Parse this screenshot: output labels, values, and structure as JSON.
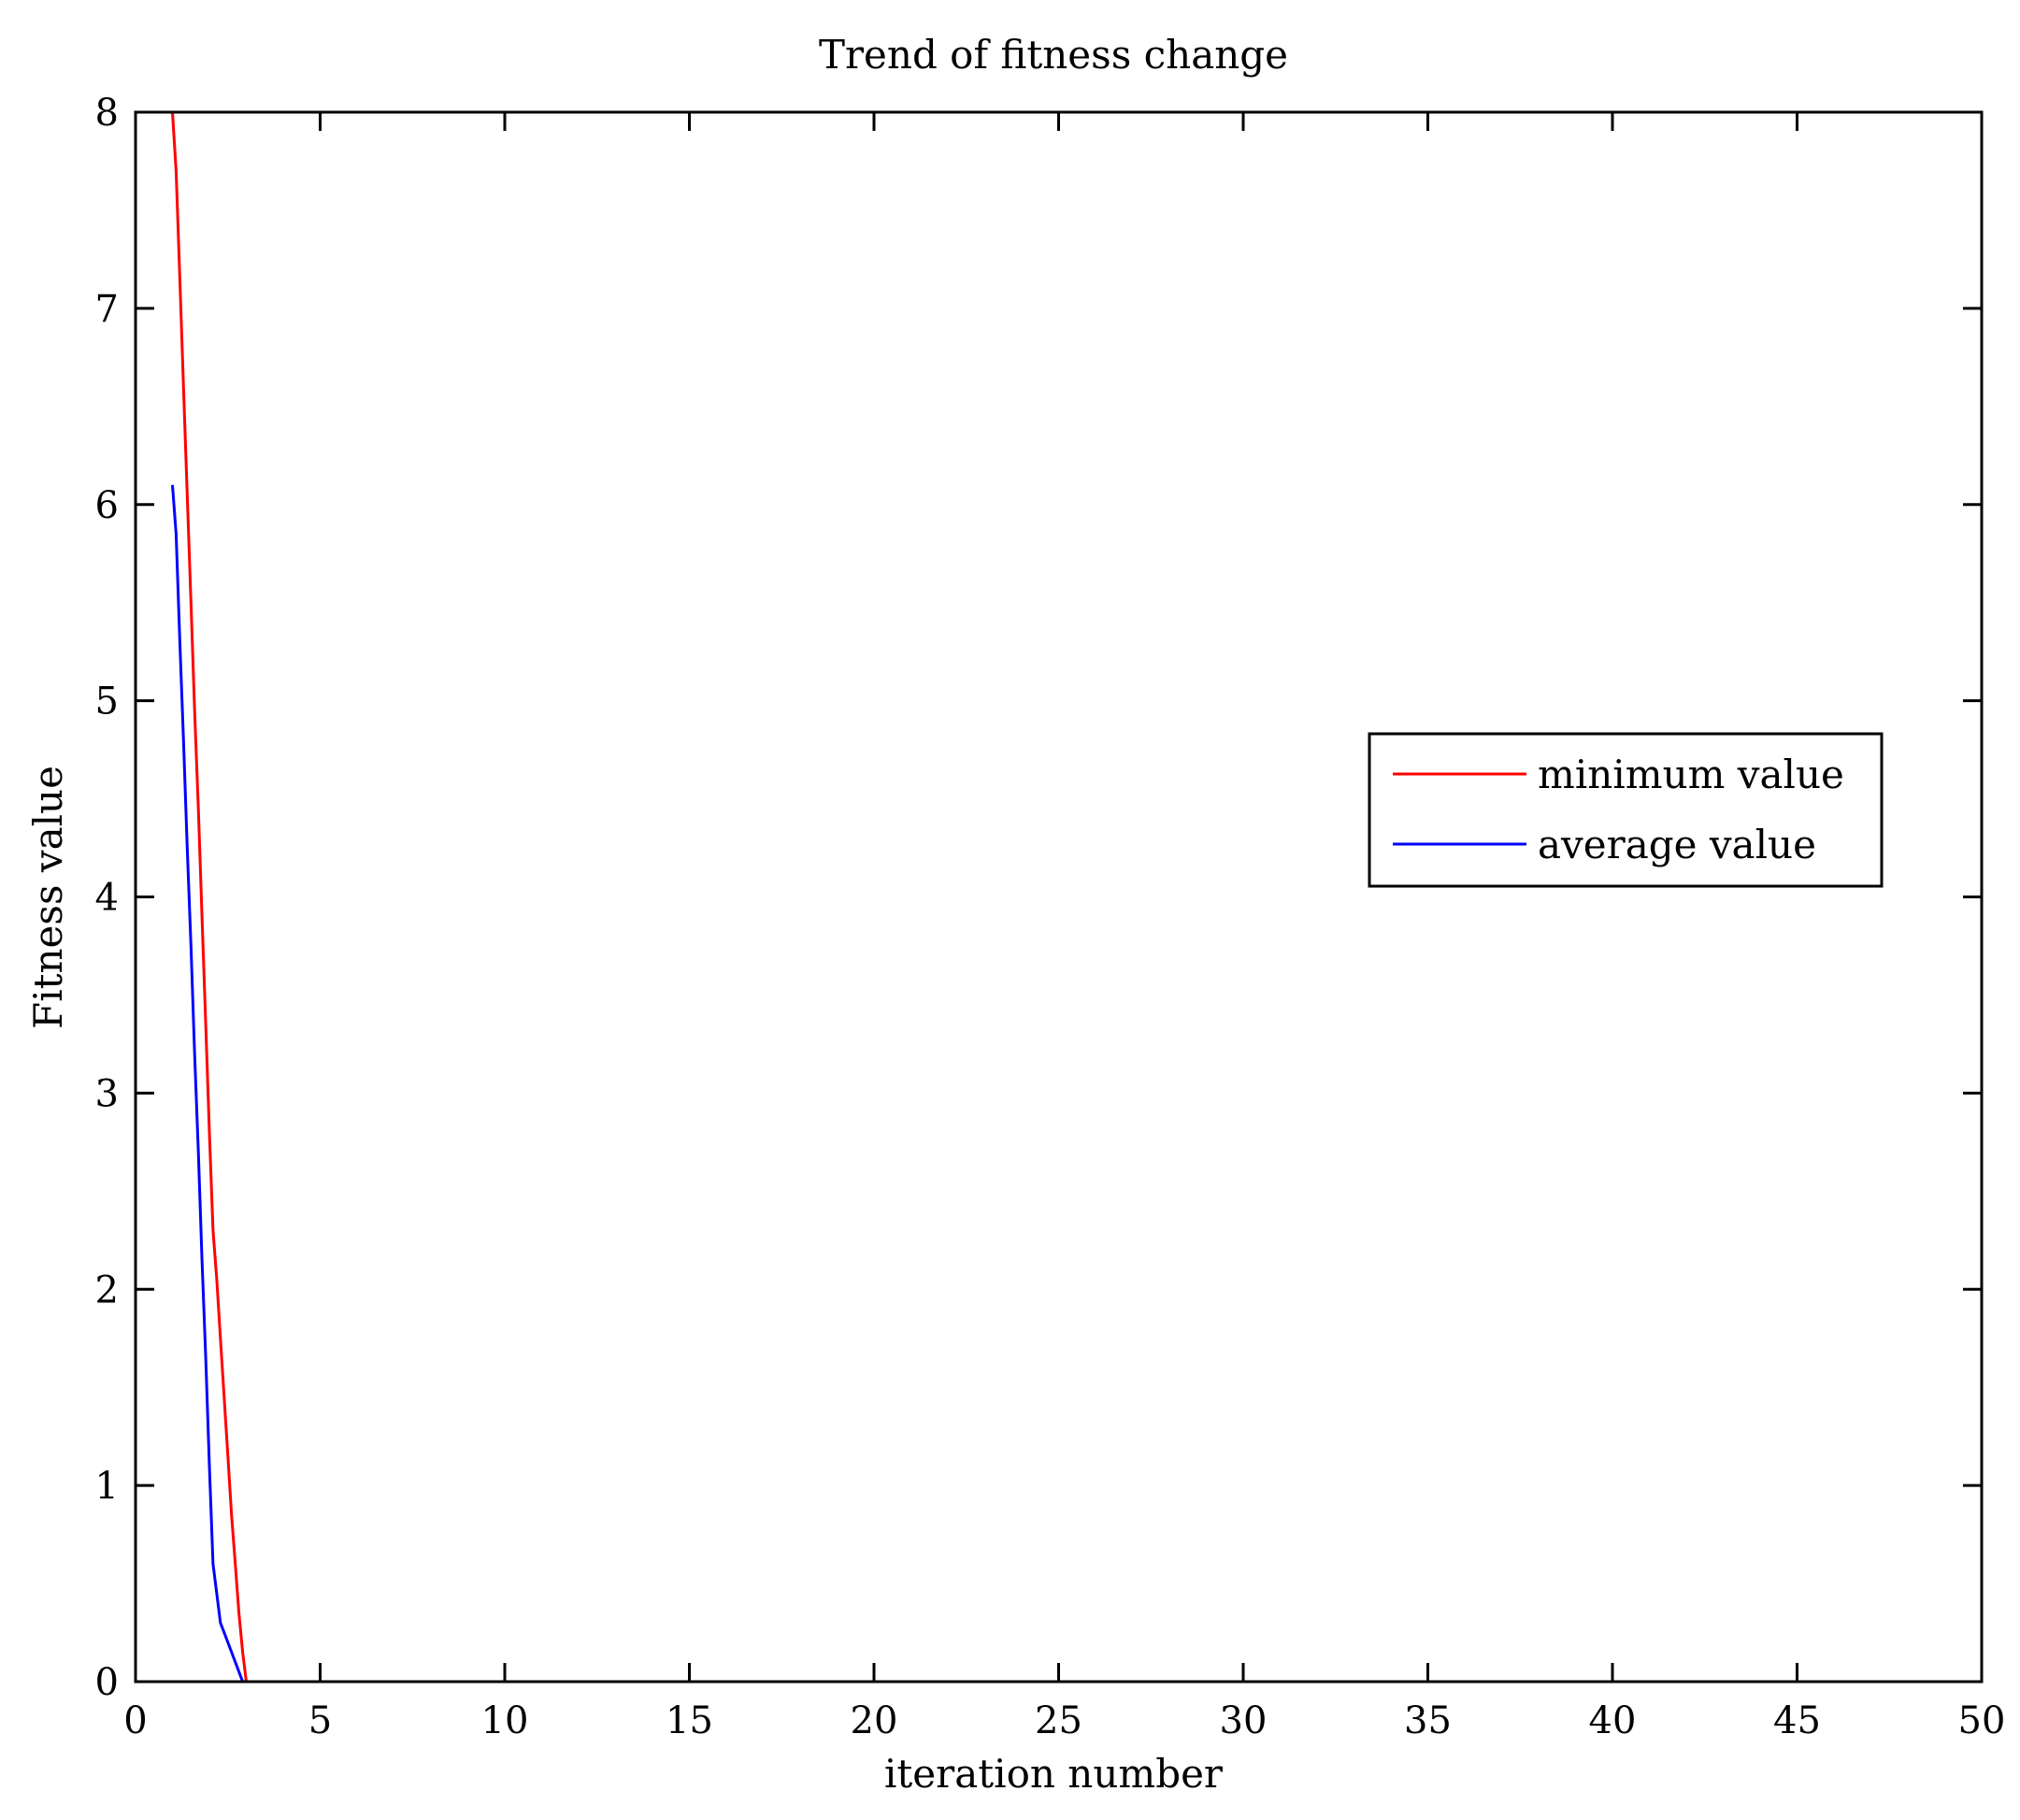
{
  "chart_data": {
    "type": "line",
    "title": "Trend of fitness change",
    "xlabel": "iteration number",
    "ylabel": "Fitness value",
    "xlim": [
      0,
      50
    ],
    "ylim": [
      0,
      8
    ],
    "xticks": [
      0,
      5,
      10,
      15,
      20,
      25,
      30,
      35,
      40,
      45,
      50
    ],
    "yticks": [
      0,
      1,
      2,
      3,
      4,
      5,
      6,
      7,
      8
    ],
    "grid": false,
    "legend_position": "right-center",
    "series": [
      {
        "name": "minimum value",
        "color": "#ff0000",
        "x": [
          1.0,
          1.1,
          1.2,
          1.3,
          1.4,
          1.5,
          1.6,
          1.7,
          1.8,
          1.9,
          2.0,
          2.1,
          2.2,
          2.3,
          2.4,
          2.5,
          2.6,
          2.7,
          2.8,
          2.9,
          3.0
        ],
        "y": [
          8.0,
          7.7,
          7.15,
          6.6,
          6.05,
          5.5,
          4.95,
          4.45,
          3.9,
          3.35,
          2.8,
          2.3,
          2.05,
          1.75,
          1.45,
          1.15,
          0.85,
          0.6,
          0.35,
          0.15,
          0.0
        ]
      },
      {
        "name": "average value",
        "color": "#0000ff",
        "x": [
          1.0,
          1.1,
          1.2,
          1.3,
          1.4,
          1.5,
          1.6,
          1.7,
          1.8,
          1.9,
          2.0,
          2.1,
          2.3,
          2.5,
          2.7,
          2.9
        ],
        "y": [
          6.1,
          5.85,
          5.3,
          4.8,
          4.25,
          3.75,
          3.2,
          2.7,
          2.15,
          1.65,
          1.1,
          0.6,
          0.3,
          0.2,
          0.1,
          0.0
        ]
      }
    ]
  }
}
